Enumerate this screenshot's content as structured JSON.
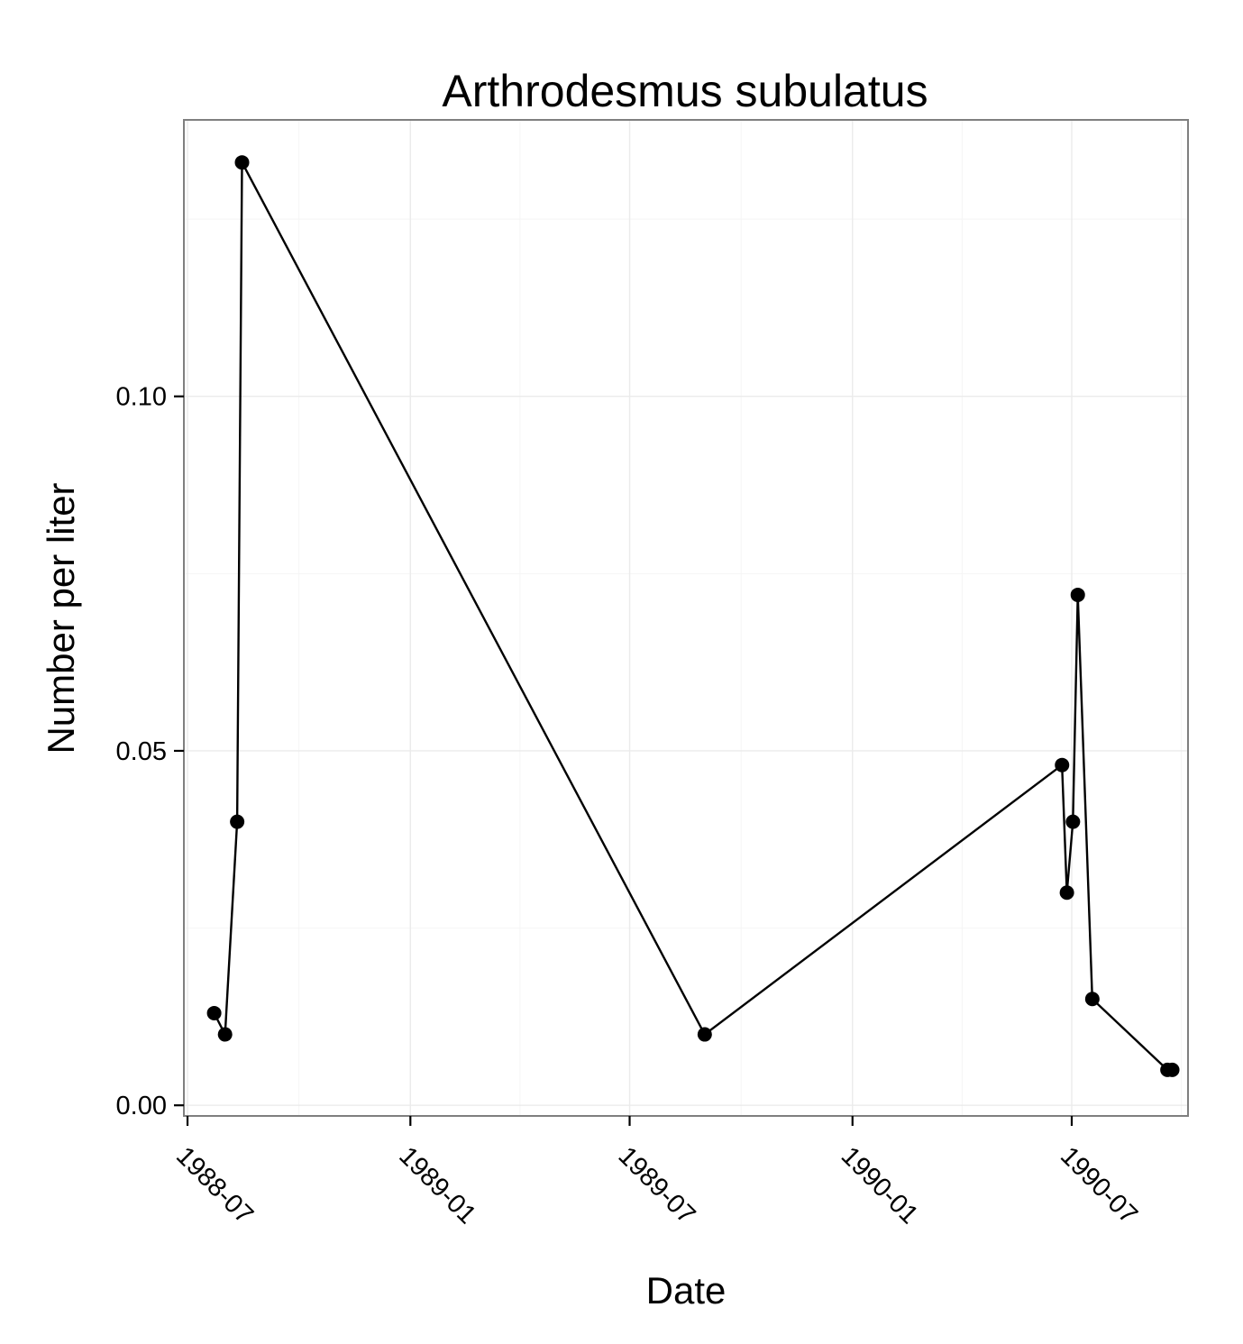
{
  "chart_data": {
    "type": "line",
    "title": "Arthrodesmus subulatus",
    "xlabel": "Date",
    "ylabel": "Number per liter",
    "x_type": "date",
    "xlim": [
      "1988-06-28",
      "1990-10-05"
    ],
    "ylim": [
      -0.0015,
      0.139
    ],
    "x_ticks": [
      "1988-07-01",
      "1989-01-01",
      "1989-07-01",
      "1990-01-01",
      "1990-07-01"
    ],
    "x_tick_labels": [
      "1988-07",
      "1989-01",
      "1989-07",
      "1990-01",
      "1990-07"
    ],
    "y_ticks": [
      0.0,
      0.05,
      0.1
    ],
    "y_tick_labels": [
      "0.00",
      "0.05",
      "0.10"
    ],
    "grid": true,
    "series": [
      {
        "color": "#000000",
        "x": [
          "1988-07-23",
          "1988-08-01",
          "1988-08-11",
          "1988-08-15",
          "1989-09-01",
          "1990-06-23",
          "1990-06-27",
          "1990-07-02",
          "1990-07-06",
          "1990-07-18",
          "1990-09-18",
          "1990-09-22"
        ],
        "y": [
          0.013,
          0.01,
          0.04,
          0.133,
          0.01,
          0.048,
          0.03,
          0.04,
          0.072,
          0.015,
          0.005,
          0.005
        ]
      }
    ]
  }
}
